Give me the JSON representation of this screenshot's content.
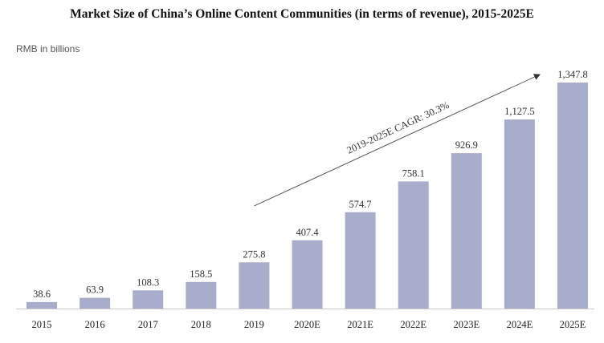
{
  "page": {
    "title": "Market Size of China’s Online Content Communities (in terms of revenue), 2015-2025E",
    "unit_label": "RMB in billions"
  },
  "chart_data": {
    "type": "bar",
    "title": "Market Size of China’s Online Content Communities (in terms of revenue), 2015-2025E",
    "ylabel": "RMB in billions",
    "xlabel": "",
    "categories": [
      "2015",
      "2016",
      "2017",
      "2018",
      "2019",
      "2020E",
      "2021E",
      "2022E",
      "2023E",
      "2024E",
      "2025E"
    ],
    "values": [
      38.6,
      63.9,
      108.3,
      158.5,
      275.8,
      407.4,
      574.7,
      758.1,
      926.9,
      1127.5,
      1347.8
    ],
    "value_labels": [
      "38.6",
      "63.9",
      "108.3",
      "158.5",
      "275.8",
      "407.4",
      "574.7",
      "758.1",
      "926.9",
      "1,127.5",
      "1,347.8"
    ],
    "ylim": [
      0,
      1500
    ],
    "grid": false,
    "legend": "none",
    "bar_color": "#a7adcb",
    "axis_color": "#c8c8c8",
    "annotation": {
      "text": "2019-2025E CAGR: 30.3%",
      "from_category": "2019",
      "to_category": "2025E"
    }
  }
}
